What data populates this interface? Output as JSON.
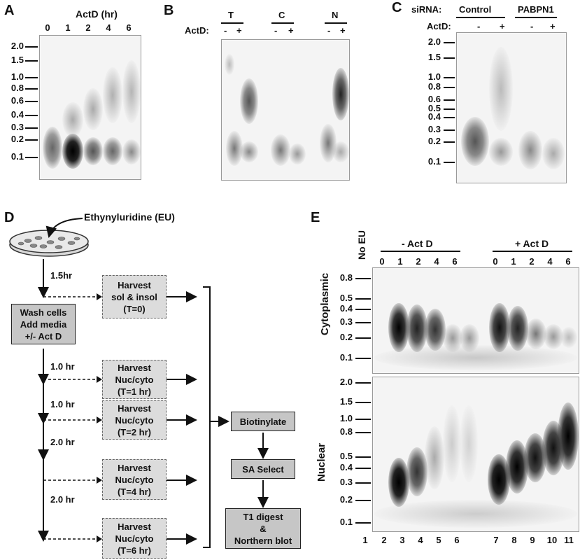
{
  "panels": {
    "A": {
      "label": "A",
      "title": "ActD (hr)",
      "lanes": [
        "0",
        "1",
        "2",
        "4",
        "6"
      ],
      "markers": [
        "2.0",
        "1.5",
        "1.0",
        "0.8",
        "0.6",
        "0.4",
        "0.3",
        "0.2",
        "0.1"
      ]
    },
    "B": {
      "label": "B",
      "groups": [
        "T",
        "C",
        "N"
      ],
      "actd_label": "ActD:",
      "minus": "-",
      "plus": "+"
    },
    "C": {
      "label": "C",
      "sirna_label": "siRNA:",
      "groups": [
        "Control",
        "PABPN1"
      ],
      "actd_label": "ActD:",
      "minus": "-",
      "plus": "+",
      "markers": [
        "2.0",
        "1.5",
        "1.0",
        "0.8",
        "0.6",
        "0.5",
        "0.4",
        "0.3",
        "0.2",
        "0.1"
      ]
    },
    "D": {
      "label": "D",
      "compound": "Ethynyluridine (EU)",
      "wash_box": [
        "Wash cells",
        "Add media",
        "+/- Act D"
      ],
      "intervals": [
        "1.5hr",
        "1.0 hr",
        "1.0 hr",
        "2.0 hr",
        "2.0 hr"
      ],
      "harvest_boxes": [
        [
          "Harvest",
          "sol & insol",
          "(T=0)"
        ],
        [
          "Harvest",
          "Nuc/cyto",
          "(T=1 hr)"
        ],
        [
          "Harvest",
          "Nuc/cyto",
          "(T=2 hr)"
        ],
        [
          "Harvest",
          "Nuc/cyto",
          "(T=4 hr)"
        ],
        [
          "Harvest",
          "Nuc/cyto",
          "(T=6 hr)"
        ]
      ],
      "steps": [
        "Biotinylate",
        "SA Select",
        "T1 digest",
        "&",
        "Northern blot"
      ]
    },
    "E": {
      "label": "E",
      "no_eu": "No EU",
      "minus_actd": "- Act D",
      "plus_actd": "+ Act D",
      "time_lanes": [
        "0",
        "1",
        "2",
        "4",
        "6"
      ],
      "cyto_label": "Cytoplasmic",
      "nuc_label": "Nuclear",
      "cyto_markers": [
        "0.8",
        "0.5",
        "0.4",
        "0.3",
        "0.2",
        "0.1"
      ],
      "nuc_markers": [
        "2.0",
        "1.5",
        "1.0",
        "0.8",
        "0.5",
        "0.4",
        "0.3",
        "0.2",
        "0.1"
      ],
      "lane_numbers": [
        "1",
        "2",
        "3",
        "4",
        "5",
        "6",
        "7",
        "8",
        "9",
        "10",
        "11"
      ]
    }
  }
}
